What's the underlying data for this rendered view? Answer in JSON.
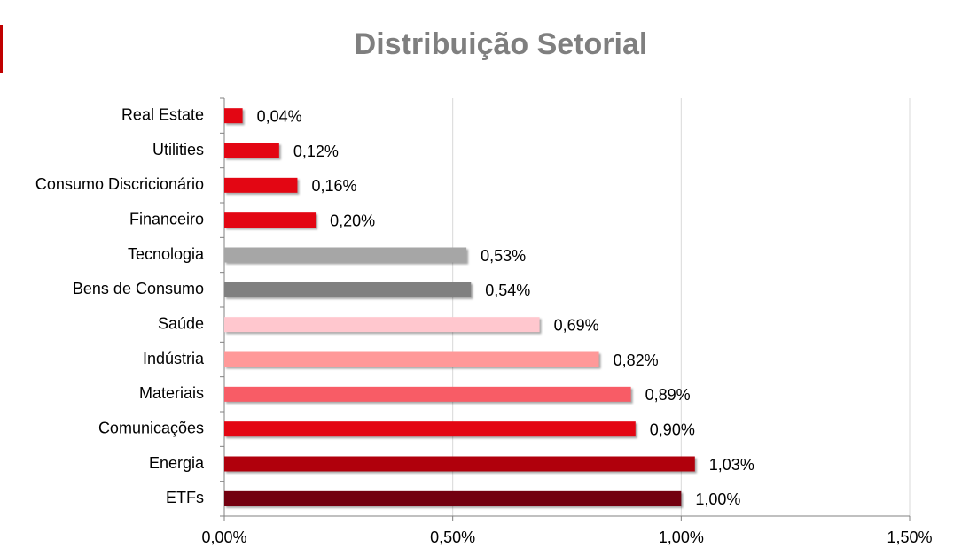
{
  "chart_data": {
    "type": "bar",
    "orientation": "horizontal",
    "title": "Distribuição Setorial",
    "categories": [
      "Real Estate",
      "Utilities",
      "Consumo Discricionário",
      "Financeiro",
      "Tecnologia",
      "Bens de Consumo",
      "Saúde",
      "Indústria",
      "Materiais",
      "Comunicações",
      "Energia",
      "ETFs"
    ],
    "values": [
      0.04,
      0.12,
      0.16,
      0.2,
      0.53,
      0.54,
      0.69,
      0.82,
      0.89,
      0.9,
      1.03,
      1.0
    ],
    "value_labels": [
      "0,04%",
      "0,12%",
      "0,16%",
      "0,20%",
      "0,53%",
      "0,54%",
      "0,69%",
      "0,82%",
      "0,89%",
      "0,90%",
      "1,03%",
      "1,00%"
    ],
    "colors": [
      "#e30613",
      "#e30613",
      "#e30613",
      "#e30613",
      "#a6a6a6",
      "#808080",
      "#ffc7ce",
      "#ff9999",
      "#f85c66",
      "#e30613",
      "#b0000c",
      "#730010"
    ],
    "xlim": [
      0,
      1.5
    ],
    "xticks": [
      {
        "value": 0,
        "label": "0,00%"
      },
      {
        "value": 0.5,
        "label": "0,50%"
      },
      {
        "value": 1.0,
        "label": "1,00%"
      },
      {
        "value": 1.5,
        "label": "1,50%"
      }
    ],
    "grid": true
  }
}
